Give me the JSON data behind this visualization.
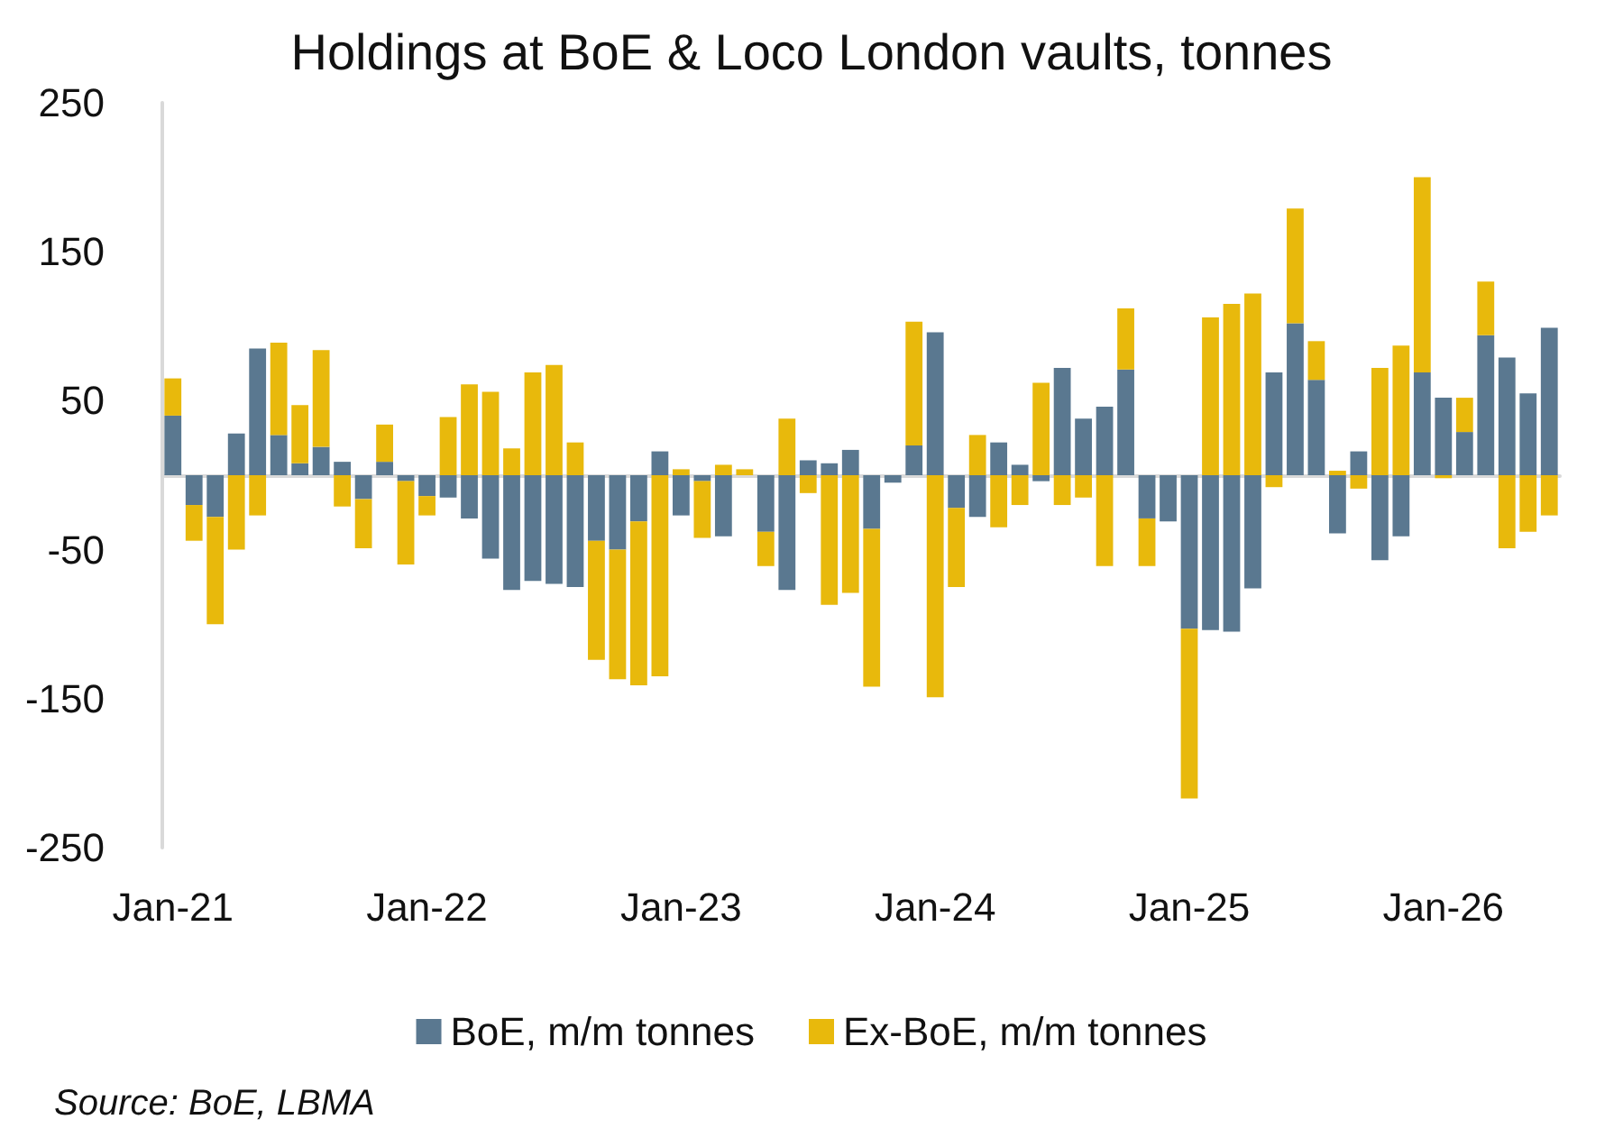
{
  "chart_data": {
    "type": "bar",
    "title": "Holdings at BoE & Loco London vaults, tonnes",
    "stacked": true,
    "categories": [
      "Jan-21",
      null,
      null,
      null,
      null,
      null,
      null,
      null,
      null,
      null,
      null,
      null,
      "Jan-22",
      null,
      null,
      null,
      null,
      null,
      null,
      null,
      null,
      null,
      null,
      null,
      "Jan-23",
      null,
      null,
      null,
      null,
      null,
      null,
      null,
      null,
      null,
      null,
      null,
      "Jan-24",
      null,
      null,
      null,
      null,
      null,
      null,
      null,
      null,
      null,
      null,
      null,
      "Jan-25",
      null,
      null,
      null,
      null,
      null,
      null,
      null,
      null,
      null,
      null,
      null,
      "Jan-26",
      null,
      null,
      null,
      null,
      null
    ],
    "series": [
      {
        "name": "BoE, m/m tonnes",
        "color": "#5a7890",
        "values": [
          40,
          -20,
          -28,
          28,
          85,
          27,
          8,
          19,
          9,
          -16,
          9,
          -4,
          -14,
          -15,
          -29,
          -56,
          -77,
          -71,
          -73,
          -75,
          -44,
          -50,
          -31,
          16,
          -27,
          -4,
          -41,
          0,
          -38,
          -77,
          10,
          8,
          17,
          -36,
          -5,
          20,
          96,
          -22,
          -28,
          22,
          7,
          -4,
          72,
          38,
          46,
          71,
          -29,
          -31,
          -103,
          -104,
          -105,
          -76,
          69,
          102,
          64,
          -39,
          16,
          -57,
          -41,
          69,
          52,
          29,
          94,
          79,
          55,
          99
        ]
      },
      {
        "name": "Ex-BoE, m/m tonnes",
        "color": "#e8b90c",
        "values": [
          25,
          -24,
          -72,
          -50,
          -27,
          62,
          39,
          65,
          -21,
          -33,
          25,
          -56,
          -13,
          39,
          61,
          56,
          18,
          69,
          74,
          22,
          -80,
          -87,
          -110,
          -135,
          4,
          -38,
          7,
          4,
          -23,
          38,
          -12,
          -87,
          -79,
          -106,
          0,
          83,
          -149,
          -53,
          27,
          -35,
          -20,
          62,
          -20,
          -15,
          -61,
          41,
          -32,
          0,
          -114,
          106,
          115,
          122,
          -8,
          77,
          26,
          3,
          -9,
          72,
          87,
          131,
          -2,
          23,
          36,
          -49,
          -38,
          -27
        ]
      }
    ],
    "ylim": [
      -250,
      250
    ],
    "yticks": [
      -250,
      -150,
      -50,
      50,
      150,
      250
    ],
    "grid": false,
    "legend": "bottom",
    "annotations": [
      "Source: BoE, LBMA"
    ]
  }
}
